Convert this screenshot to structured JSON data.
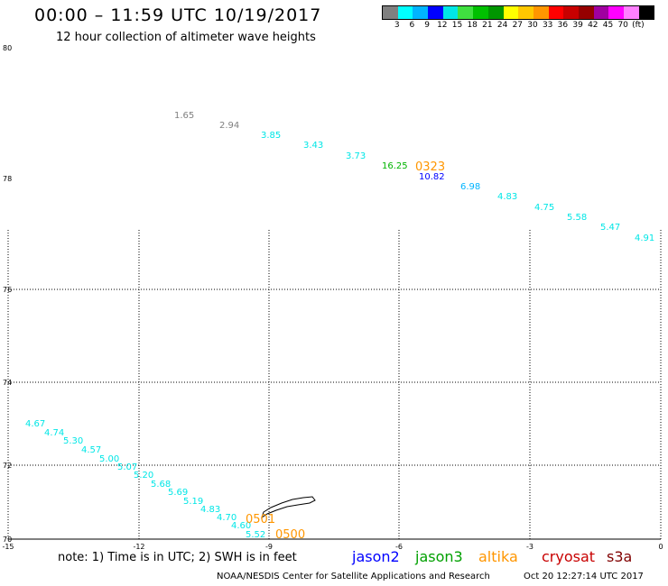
{
  "header": {
    "title": "00:00 – 11:59 UTC 10/19/2017",
    "subtitle": "12 hour collection of altimeter wave heights"
  },
  "colorbar": {
    "colors": [
      "#808080",
      "#00ffff",
      "#00b4ff",
      "#0000ff",
      "#00e6e6",
      "#40e040",
      "#00c000",
      "#009600",
      "#ffff00",
      "#ffc800",
      "#ff9600",
      "#ff0000",
      "#c80000",
      "#960000",
      "#a000a0",
      "#ff00ff",
      "#ff80ff",
      "#000000"
    ],
    "labels": [
      "3",
      "6",
      "9",
      "12",
      "15",
      "18",
      "21",
      "24",
      "27",
      "30",
      "33",
      "36",
      "39",
      "42",
      "45",
      "70",
      "(ft)"
    ]
  },
  "axes": {
    "y_labels": [
      "80",
      "78",
      "76",
      "74",
      "72",
      "70"
    ],
    "x_labels": [
      "-15",
      "-12",
      "-9",
      "-6",
      "-3",
      "0"
    ]
  },
  "wave_heights": {
    "upper_track": [
      {
        "text": "1.65",
        "color": "#808080"
      },
      {
        "text": "2.94",
        "color": "#808080"
      },
      {
        "text": "3.85",
        "color": "#00e6e6"
      },
      {
        "text": "3.43",
        "color": "#00e6e6"
      },
      {
        "text": "3.73",
        "color": "#00e6e6"
      },
      {
        "text": "16.25",
        "color": "#00b400"
      },
      {
        "text": "10.82",
        "color": "#0000ff"
      },
      {
        "text": "6.98",
        "color": "#00b4ff"
      },
      {
        "text": "4.83",
        "color": "#00e6e6"
      },
      {
        "text": "4.75",
        "color": "#00e6e6"
      },
      {
        "text": "5.58",
        "color": "#00e6e6"
      },
      {
        "text": "5.47",
        "color": "#00e6e6"
      },
      {
        "text": "4.91",
        "color": "#00e6e6"
      }
    ],
    "lower_track": [
      {
        "text": "4.67",
        "color": "#00e6e6"
      },
      {
        "text": "4.74",
        "color": "#00e6e6"
      },
      {
        "text": "5.30",
        "color": "#00e6e6"
      },
      {
        "text": "4.57",
        "color": "#00e6e6"
      },
      {
        "text": "5.00",
        "color": "#00e6e6"
      },
      {
        "text": "5.07",
        "color": "#00e6e6"
      },
      {
        "text": "5.20",
        "color": "#00e6e6"
      },
      {
        "text": "5.68",
        "color": "#00e6e6"
      },
      {
        "text": "5.69",
        "color": "#00e6e6"
      },
      {
        "text": "5.19",
        "color": "#00e6e6"
      },
      {
        "text": "4.83",
        "color": "#00e6e6"
      },
      {
        "text": "4.70",
        "color": "#00e6e6"
      },
      {
        "text": "4.60",
        "color": "#00e6e6"
      },
      {
        "text": "5.52",
        "color": "#00e6e6"
      }
    ],
    "time_labels": [
      {
        "text": "0323",
        "color": "#ff9600"
      },
      {
        "text": "0501",
        "color": "#ff9600"
      },
      {
        "text": "0500",
        "color": "#ff9600"
      }
    ]
  },
  "legend": {
    "note": "note: 1) Time is in UTC; 2) SWH is in feet",
    "satellites": [
      {
        "name": "jason2",
        "color": "#0000ff"
      },
      {
        "name": "jason3",
        "color": "#00a000"
      },
      {
        "name": "altika",
        "color": "#ff9600"
      },
      {
        "name": "cryosat",
        "color": "#c80000"
      },
      {
        "name": "s3a",
        "color": "#800000"
      }
    ]
  },
  "footer": {
    "credit": "NOAA/NESDIS Center for Satellite Applications and Research",
    "timestamp": "Oct 20 12:27:14 UTC 2017"
  }
}
